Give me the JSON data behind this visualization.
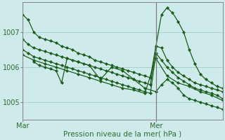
{
  "xlabel": "Pression niveau de la mer( hPa )",
  "background_color": "#ceeaea",
  "plot_background": "#ceeaea",
  "grid_color": "#a0cccc",
  "line_color": "#1a5c1a",
  "marker_color": "#1a5c1a",
  "yticks": [
    1005,
    1006,
    1007
  ],
  "ylim": [
    1004.6,
    1007.85
  ],
  "xlim": [
    0,
    36
  ],
  "mar_x": 0,
  "mer_x": 24,
  "lines": [
    {
      "x": [
        0,
        1,
        2,
        3,
        4,
        5,
        6,
        7,
        8,
        9,
        10,
        11,
        12,
        13,
        14,
        15,
        16,
        17,
        18,
        19,
        20,
        21,
        22,
        23,
        24,
        25,
        26,
        27,
        28,
        29,
        30,
        31,
        32,
        33,
        34,
        35,
        36
      ],
      "y": [
        1007.5,
        1007.35,
        1007.0,
        1006.85,
        1006.8,
        1006.75,
        1006.7,
        1006.6,
        1006.55,
        1006.5,
        1006.4,
        1006.35,
        1006.3,
        1006.2,
        1006.15,
        1006.1,
        1006.05,
        1006.0,
        1005.95,
        1005.9,
        1005.85,
        1005.8,
        1005.75,
        1005.7,
        1006.6,
        1007.5,
        1007.7,
        1007.55,
        1007.3,
        1007.0,
        1006.5,
        1006.1,
        1005.8,
        1005.65,
        1005.55,
        1005.45,
        1005.4
      ]
    },
    {
      "x": [
        0,
        1,
        2,
        3,
        4,
        5,
        6,
        7,
        8,
        9,
        10,
        11,
        12,
        13,
        14,
        15,
        16,
        17,
        18,
        19,
        20,
        21,
        22,
        23,
        24,
        25,
        26,
        27,
        28,
        29,
        30,
        31,
        32,
        33,
        34,
        35,
        36
      ],
      "y": [
        1006.8,
        1006.65,
        1006.55,
        1006.5,
        1006.45,
        1006.4,
        1006.35,
        1006.3,
        1006.25,
        1006.2,
        1006.15,
        1006.1,
        1006.05,
        1006.0,
        1005.95,
        1005.9,
        1005.85,
        1005.8,
        1005.75,
        1005.7,
        1005.65,
        1005.6,
        1005.55,
        1005.5,
        1006.6,
        1006.55,
        1006.2,
        1006.0,
        1005.85,
        1005.75,
        1005.65,
        1005.55,
        1005.5,
        1005.45,
        1005.4,
        1005.35,
        1005.3
      ]
    },
    {
      "x": [
        0,
        1,
        2,
        3,
        4,
        5,
        6,
        7,
        8,
        9,
        10,
        11,
        12,
        13,
        14,
        15,
        16,
        17,
        18,
        19,
        20,
        21,
        22,
        23,
        24,
        25,
        26,
        27,
        28,
        29,
        30,
        31,
        32,
        33,
        34,
        35,
        36
      ],
      "y": [
        1006.5,
        1006.4,
        1006.3,
        1006.25,
        1006.2,
        1006.15,
        1006.1,
        1006.05,
        1006.0,
        1005.95,
        1005.9,
        1005.85,
        1005.8,
        1005.75,
        1005.7,
        1005.65,
        1005.6,
        1005.55,
        1005.5,
        1005.45,
        1005.4,
        1005.35,
        1005.3,
        1005.25,
        1006.4,
        1006.2,
        1006.0,
        1005.85,
        1005.7,
        1005.6,
        1005.5,
        1005.4,
        1005.35,
        1005.3,
        1005.25,
        1005.2,
        1005.1
      ]
    },
    {
      "x": [
        0,
        2,
        4,
        6,
        8,
        10,
        12,
        14,
        16,
        18,
        20,
        22,
        24,
        26,
        28,
        30,
        32,
        34,
        36
      ],
      "y": [
        1006.35,
        1006.2,
        1006.1,
        1006.0,
        1005.9,
        1005.8,
        1005.7,
        1005.6,
        1005.5,
        1005.4,
        1005.35,
        1005.25,
        1006.25,
        1005.75,
        1005.55,
        1005.45,
        1005.3,
        1005.2,
        1005.05
      ]
    },
    {
      "x": [
        2,
        3,
        4,
        5,
        6,
        7,
        8,
        10,
        12,
        14,
        16,
        18,
        20,
        22,
        24,
        25,
        26,
        27,
        28,
        29,
        30,
        31,
        32,
        33,
        34,
        35,
        36
      ],
      "y": [
        1006.15,
        1006.05,
        1006.0,
        1005.95,
        1005.9,
        1005.55,
        1006.25,
        1006.15,
        1006.05,
        1005.65,
        1006.0,
        1005.9,
        1005.65,
        1005.4,
        1005.3,
        1005.5,
        1005.65,
        1005.55,
        1005.4,
        1005.2,
        1005.1,
        1005.05,
        1005.0,
        1004.95,
        1004.9,
        1004.85,
        1004.8
      ]
    }
  ],
  "vlines": [
    0,
    24
  ],
  "vline_color": "#777777"
}
